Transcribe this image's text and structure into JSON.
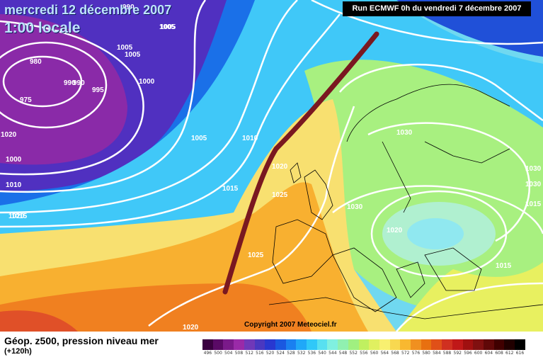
{
  "header": {
    "date_line": "mercredi 12 décembre 2007",
    "time_line": "1:00 locale",
    "run_info": "Run ECMWF 0h du vendredi 7 décembre 2007"
  },
  "map": {
    "copyright": "Copyright 2007 Meteociel.fr",
    "pressure_labels": [
      "990",
      "1005",
      "1005",
      "1005",
      "980",
      "990",
      "990",
      "995",
      "975",
      "1000",
      "1005",
      "1010",
      "1020",
      "1025",
      "1015",
      "1020",
      "1030",
      "1030",
      "1020",
      "1030",
      "1030",
      "1015",
      "1025",
      "1015",
      "1015",
      "1020",
      "1005",
      "1010",
      "1000",
      "1020"
    ]
  },
  "legend": {
    "title": "Géop. z500, pression niveau mer",
    "subtitle": "(+120h)",
    "scale": [
      {
        "label": "496",
        "color": "#3a0040"
      },
      {
        "label": "500",
        "color": "#5a0a66"
      },
      {
        "label": "504",
        "color": "#7a1a8a"
      },
      {
        "label": "508",
        "color": "#9a2aa8"
      },
      {
        "label": "512",
        "color": "#7038b8"
      },
      {
        "label": "516",
        "color": "#4a38c0"
      },
      {
        "label": "520",
        "color": "#2838d0"
      },
      {
        "label": "524",
        "color": "#1a58e0"
      },
      {
        "label": "528",
        "color": "#1a80f0"
      },
      {
        "label": "532",
        "color": "#20a8f8"
      },
      {
        "label": "536",
        "color": "#30c8f8"
      },
      {
        "label": "540",
        "color": "#58e0f0"
      },
      {
        "label": "544",
        "color": "#80f0e0"
      },
      {
        "label": "548",
        "color": "#90f0b0"
      },
      {
        "label": "552",
        "color": "#a0f080"
      },
      {
        "label": "556",
        "color": "#c0f060"
      },
      {
        "label": "560",
        "color": "#e0f060"
      },
      {
        "label": "564",
        "color": "#f8f070"
      },
      {
        "label": "568",
        "color": "#f8d850"
      },
      {
        "label": "572",
        "color": "#f8b830"
      },
      {
        "label": "576",
        "color": "#f09020"
      },
      {
        "label": "580",
        "color": "#e87010"
      },
      {
        "label": "584",
        "color": "#e05018"
      },
      {
        "label": "588",
        "color": "#d03020"
      },
      {
        "label": "592",
        "color": "#c01818"
      },
      {
        "label": "596",
        "color": "#a01010"
      },
      {
        "label": "600",
        "color": "#801010"
      },
      {
        "label": "604",
        "color": "#600808"
      },
      {
        "label": "608",
        "color": "#400000"
      },
      {
        "label": "612",
        "color": "#200000"
      },
      {
        "label": "616",
        "color": "#000000"
      }
    ]
  },
  "colors": {
    "trough_line": "#7a1820",
    "isobar": "#ffffff"
  }
}
